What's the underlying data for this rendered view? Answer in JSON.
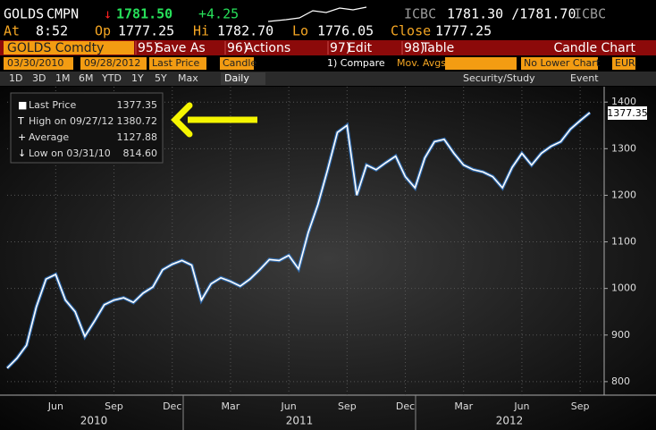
{
  "header": {
    "ticker": "GOLDS",
    "exchange": "CMPN",
    "arrow": "↓",
    "price": "1781.50",
    "change": "+4.25",
    "bid_source": "ICBC",
    "bid_ask": "1781.30 /1781.70",
    "ask_source": "ICBC",
    "at_label": "At",
    "time": "8:52",
    "open_label": "Op",
    "open": "1777.25",
    "high_label": "Hi",
    "high": "1782.70",
    "low_label": "Lo",
    "low": "1776.05",
    "close_label": "Close",
    "close": "1777.25"
  },
  "toolbar": {
    "security": "GOLDS Comdty",
    "buttons": [
      {
        "num": "95)",
        "label": "Save As"
      },
      {
        "num": "96)",
        "label": "Actions"
      },
      {
        "num": "97)",
        "label": "Edit"
      },
      {
        "num": "98)",
        "label": "Table"
      }
    ],
    "chart_type": "Candle Chart",
    "start_date": "03/30/2010",
    "end_date": "09/28/2012",
    "field": "Last Price",
    "style": "Candle",
    "compare": "1) Compare",
    "mov_avgs": "Mov. Avgs",
    "lower_chart": "No Lower Chart",
    "currency": "EUR",
    "periods": [
      "1D",
      "3D",
      "1M",
      "6M",
      "YTD",
      "1Y",
      "5Y",
      "Max"
    ],
    "frequency": "Daily",
    "security_study": "Security/Study",
    "event": "Event"
  },
  "chart_data": {
    "type": "line",
    "color": "#ffffff",
    "grid": true,
    "stats": [
      {
        "label": "Last Price",
        "value": "1377.35"
      },
      {
        "label": "High on 09/27/12",
        "value": "1380.72"
      },
      {
        "label": "Average",
        "value": "1127.88"
      },
      {
        "label": "Low on 03/31/10",
        "value": "814.60"
      }
    ],
    "categories": [
      null,
      null,
      null,
      null,
      null,
      "Jun",
      null,
      null,
      null,
      null,
      null,
      "Sep",
      null,
      null,
      null,
      null,
      null,
      "Dec",
      null,
      null,
      null,
      null,
      null,
      "Mar",
      null,
      null,
      null,
      null,
      null,
      "Jun",
      null,
      null,
      null,
      null,
      null,
      "Sep",
      null,
      null,
      null,
      null,
      null,
      "Dec",
      null,
      null,
      null,
      null,
      null,
      "Mar",
      null,
      null,
      null,
      null,
      null,
      "Jun",
      null,
      null,
      null,
      null,
      null,
      "Sep",
      null
    ],
    "years": [
      "2010",
      "2011",
      "2012"
    ],
    "values": [
      829,
      850,
      878,
      960,
      1020,
      1030,
      975,
      950,
      897,
      930,
      965,
      975,
      980,
      970,
      990,
      1003,
      1040,
      1052,
      1060,
      1050,
      975,
      1010,
      1023,
      1015,
      1005,
      1020,
      1040,
      1062,
      1060,
      1071,
      1042,
      1120,
      1180,
      1255,
      1335,
      1350,
      1200,
      1265,
      1255,
      1270,
      1284,
      1240,
      1216,
      1280,
      1315,
      1320,
      1290,
      1265,
      1255,
      1250,
      1240,
      1216,
      1260,
      1290,
      1265,
      1290,
      1305,
      1315,
      1342,
      1360,
      1377.35
    ],
    "ylim": [
      771,
      1433
    ],
    "yticks": [
      800,
      900,
      1000,
      1100,
      1200,
      1300,
      1400
    ]
  }
}
